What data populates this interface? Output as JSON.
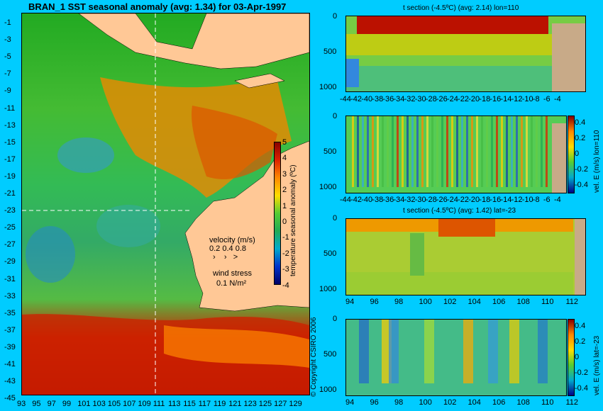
{
  "main_map": {
    "title": "BRAN_1 SST seasonal anomaly (avg: 1.34) for 03-Apr-1997",
    "x_ticks": [
      "93",
      "95",
      "97",
      "99",
      "101",
      "103",
      "105",
      "107",
      "109",
      "111",
      "113",
      "115",
      "117",
      "119",
      "121",
      "123",
      "125",
      "127",
      "129"
    ],
    "y_ticks": [
      "-1",
      "-3",
      "-5",
      "-7",
      "-9",
      "-11",
      "-13",
      "-15",
      "-17",
      "-19",
      "-21",
      "-23",
      "-25",
      "-27",
      "-29",
      "-31",
      "-33",
      "-35",
      "-37",
      "-39",
      "-41",
      "-43",
      "-45"
    ],
    "colorbar_label": "temperature seasonal anomaly (ºC)",
    "colorbar_ticks": [
      "5",
      "4",
      "3",
      "2",
      "1",
      "0",
      "-1",
      "-2",
      "-3",
      "-4"
    ],
    "velocity_label": "velocity (m/s)",
    "velocity_values": "0.2 0.4 0.8",
    "wind_label": "wind stress",
    "wind_value": "0.1 N/m²",
    "copyright": "© Copyright CSIRO 2006"
  },
  "panel1": {
    "title": "t section (-4.5ºC) (avg: 2.14) lon=110",
    "x_ticks": [
      "-44",
      "-42",
      "-40",
      "-38",
      "-36",
      "-34",
      "-32",
      "-30",
      "-28",
      "-26",
      "-24",
      "-22",
      "-20",
      "-18",
      "-16",
      "-14",
      "-12",
      "-10",
      "-8",
      "-6",
      "-4"
    ],
    "y_ticks": [
      "0",
      "500",
      "1000"
    ]
  },
  "panel2": {
    "x_ticks": [
      "-44",
      "-42",
      "-40",
      "-38",
      "-36",
      "-34",
      "-32",
      "-30",
      "-28",
      "-26",
      "-24",
      "-22",
      "-20",
      "-18",
      "-16",
      "-14",
      "-12",
      "-10",
      "-8",
      "-6",
      "-4"
    ],
    "y_ticks": [
      "0",
      "500",
      "1000"
    ],
    "colorbar_ticks": [
      "0.4",
      "0.2",
      "0",
      "-0.2",
      "-0.4"
    ],
    "colorbar_label": "vel. E (m/s) lon=110"
  },
  "panel3": {
    "title": "t section (-4.5ºC) (avg: 1.42) lat=-23",
    "x_ticks": [
      "94",
      "96",
      "98",
      "100",
      "102",
      "104",
      "106",
      "108",
      "110",
      "112"
    ],
    "y_ticks": [
      "0",
      "500",
      "1000"
    ]
  },
  "panel4": {
    "x_ticks": [
      "94",
      "96",
      "98",
      "100",
      "102",
      "104",
      "106",
      "108",
      "110",
      "112"
    ],
    "y_ticks": [
      "0",
      "500",
      "1000"
    ],
    "colorbar_ticks": [
      "0.4",
      "0.2",
      "0",
      "-0.2",
      "-0.4"
    ],
    "colorbar_label": "vel. E (m/s) lat=-23"
  },
  "chart_data": [
    {
      "type": "heatmap",
      "title": "BRAN_1 SST seasonal anomaly (avg: 1.34) for 03-Apr-1997",
      "xlim": [
        93,
        130
      ],
      "ylim": [
        -45,
        0
      ],
      "colorbar_range": [
        -4,
        5
      ]
    },
    {
      "type": "heatmap",
      "title": "t section (-4.5ºC) (avg: 2.14) lon=110",
      "xlim": [
        -45,
        -3
      ],
      "ylim": [
        1050,
        0
      ]
    },
    {
      "type": "heatmap",
      "xlim": [
        -45,
        -3
      ],
      "ylim": [
        1050,
        0
      ],
      "colorbar_range": [
        -0.4,
        0.4
      ]
    },
    {
      "type": "heatmap",
      "title": "t section (-4.5ºC) (avg: 1.42) lat=-23",
      "xlim": [
        93,
        114
      ],
      "ylim": [
        1050,
        0
      ]
    },
    {
      "type": "heatmap",
      "xlim": [
        93,
        114
      ],
      "ylim": [
        1050,
        0
      ],
      "colorbar_range": [
        -0.4,
        0.4
      ]
    }
  ],
  "colors": {
    "background": "#00ccff",
    "land": "#ffc896",
    "section_land": "#c8aa88"
  }
}
